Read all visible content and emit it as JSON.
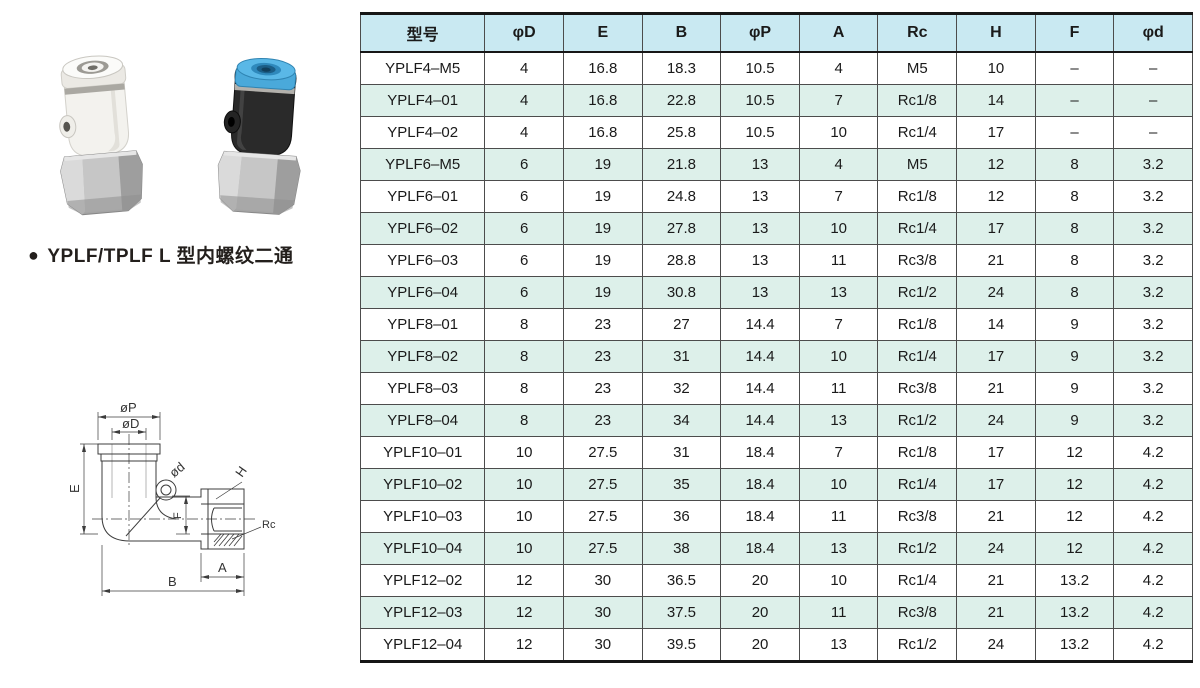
{
  "product": {
    "bullet": "●",
    "title": "YPLF/TPLF L 型内螺纹二通",
    "photos": [
      {
        "name": "white-elbow-fitting"
      },
      {
        "name": "black-elbow-fitting"
      }
    ]
  },
  "drawing": {
    "labels": {
      "phiP": "øP",
      "phiD": "øD",
      "E": "E",
      "phid": "ød",
      "H": "H",
      "F": "F",
      "Rc": "Rc",
      "A": "A",
      "B": "B"
    }
  },
  "table": {
    "headers": [
      "型号",
      "φD",
      "E",
      "B",
      "φP",
      "A",
      "Rc",
      "H",
      "F",
      "φd"
    ],
    "rows": [
      [
        "YPLF4–M5",
        "4",
        "16.8",
        "18.3",
        "10.5",
        "4",
        "M5",
        "10",
        "–",
        "–"
      ],
      [
        "YPLF4–01",
        "4",
        "16.8",
        "22.8",
        "10.5",
        "7",
        "Rc1/8",
        "14",
        "–",
        "–"
      ],
      [
        "YPLF4–02",
        "4",
        "16.8",
        "25.8",
        "10.5",
        "10",
        "Rc1/4",
        "17",
        "–",
        "–"
      ],
      [
        "YPLF6–M5",
        "6",
        "19",
        "21.8",
        "13",
        "4",
        "M5",
        "12",
        "8",
        "3.2"
      ],
      [
        "YPLF6–01",
        "6",
        "19",
        "24.8",
        "13",
        "7",
        "Rc1/8",
        "12",
        "8",
        "3.2"
      ],
      [
        "YPLF6–02",
        "6",
        "19",
        "27.8",
        "13",
        "10",
        "Rc1/4",
        "17",
        "8",
        "3.2"
      ],
      [
        "YPLF6–03",
        "6",
        "19",
        "28.8",
        "13",
        "11",
        "Rc3/8",
        "21",
        "8",
        "3.2"
      ],
      [
        "YPLF6–04",
        "6",
        "19",
        "30.8",
        "13",
        "13",
        "Rc1/2",
        "24",
        "8",
        "3.2"
      ],
      [
        "YPLF8–01",
        "8",
        "23",
        "27",
        "14.4",
        "7",
        "Rc1/8",
        "14",
        "9",
        "3.2"
      ],
      [
        "YPLF8–02",
        "8",
        "23",
        "31",
        "14.4",
        "10",
        "Rc1/4",
        "17",
        "9",
        "3.2"
      ],
      [
        "YPLF8–03",
        "8",
        "23",
        "32",
        "14.4",
        "11",
        "Rc3/8",
        "21",
        "9",
        "3.2"
      ],
      [
        "YPLF8–04",
        "8",
        "23",
        "34",
        "14.4",
        "13",
        "Rc1/2",
        "24",
        "9",
        "3.2"
      ],
      [
        "YPLF10–01",
        "10",
        "27.5",
        "31",
        "18.4",
        "7",
        "Rc1/8",
        "17",
        "12",
        "4.2"
      ],
      [
        "YPLF10–02",
        "10",
        "27.5",
        "35",
        "18.4",
        "10",
        "Rc1/4",
        "17",
        "12",
        "4.2"
      ],
      [
        "YPLF10–03",
        "10",
        "27.5",
        "36",
        "18.4",
        "11",
        "Rc3/8",
        "21",
        "12",
        "4.2"
      ],
      [
        "YPLF10–04",
        "10",
        "27.5",
        "38",
        "18.4",
        "13",
        "Rc1/2",
        "24",
        "12",
        "4.2"
      ],
      [
        "YPLF12–02",
        "12",
        "30",
        "36.5",
        "20",
        "10",
        "Rc1/4",
        "21",
        "13.2",
        "4.2"
      ],
      [
        "YPLF12–03",
        "12",
        "30",
        "37.5",
        "20",
        "11",
        "Rc3/8",
        "21",
        "13.2",
        "4.2"
      ],
      [
        "YPLF12–04",
        "12",
        "30",
        "39.5",
        "20",
        "13",
        "Rc1/2",
        "24",
        "13.2",
        "4.2"
      ]
    ],
    "colors": {
      "header_bg": "#c9e9f2",
      "alt_row_bg": "#ddf0ea",
      "grid_line": "#4c4c4c",
      "heavy_line": "#161616"
    }
  }
}
